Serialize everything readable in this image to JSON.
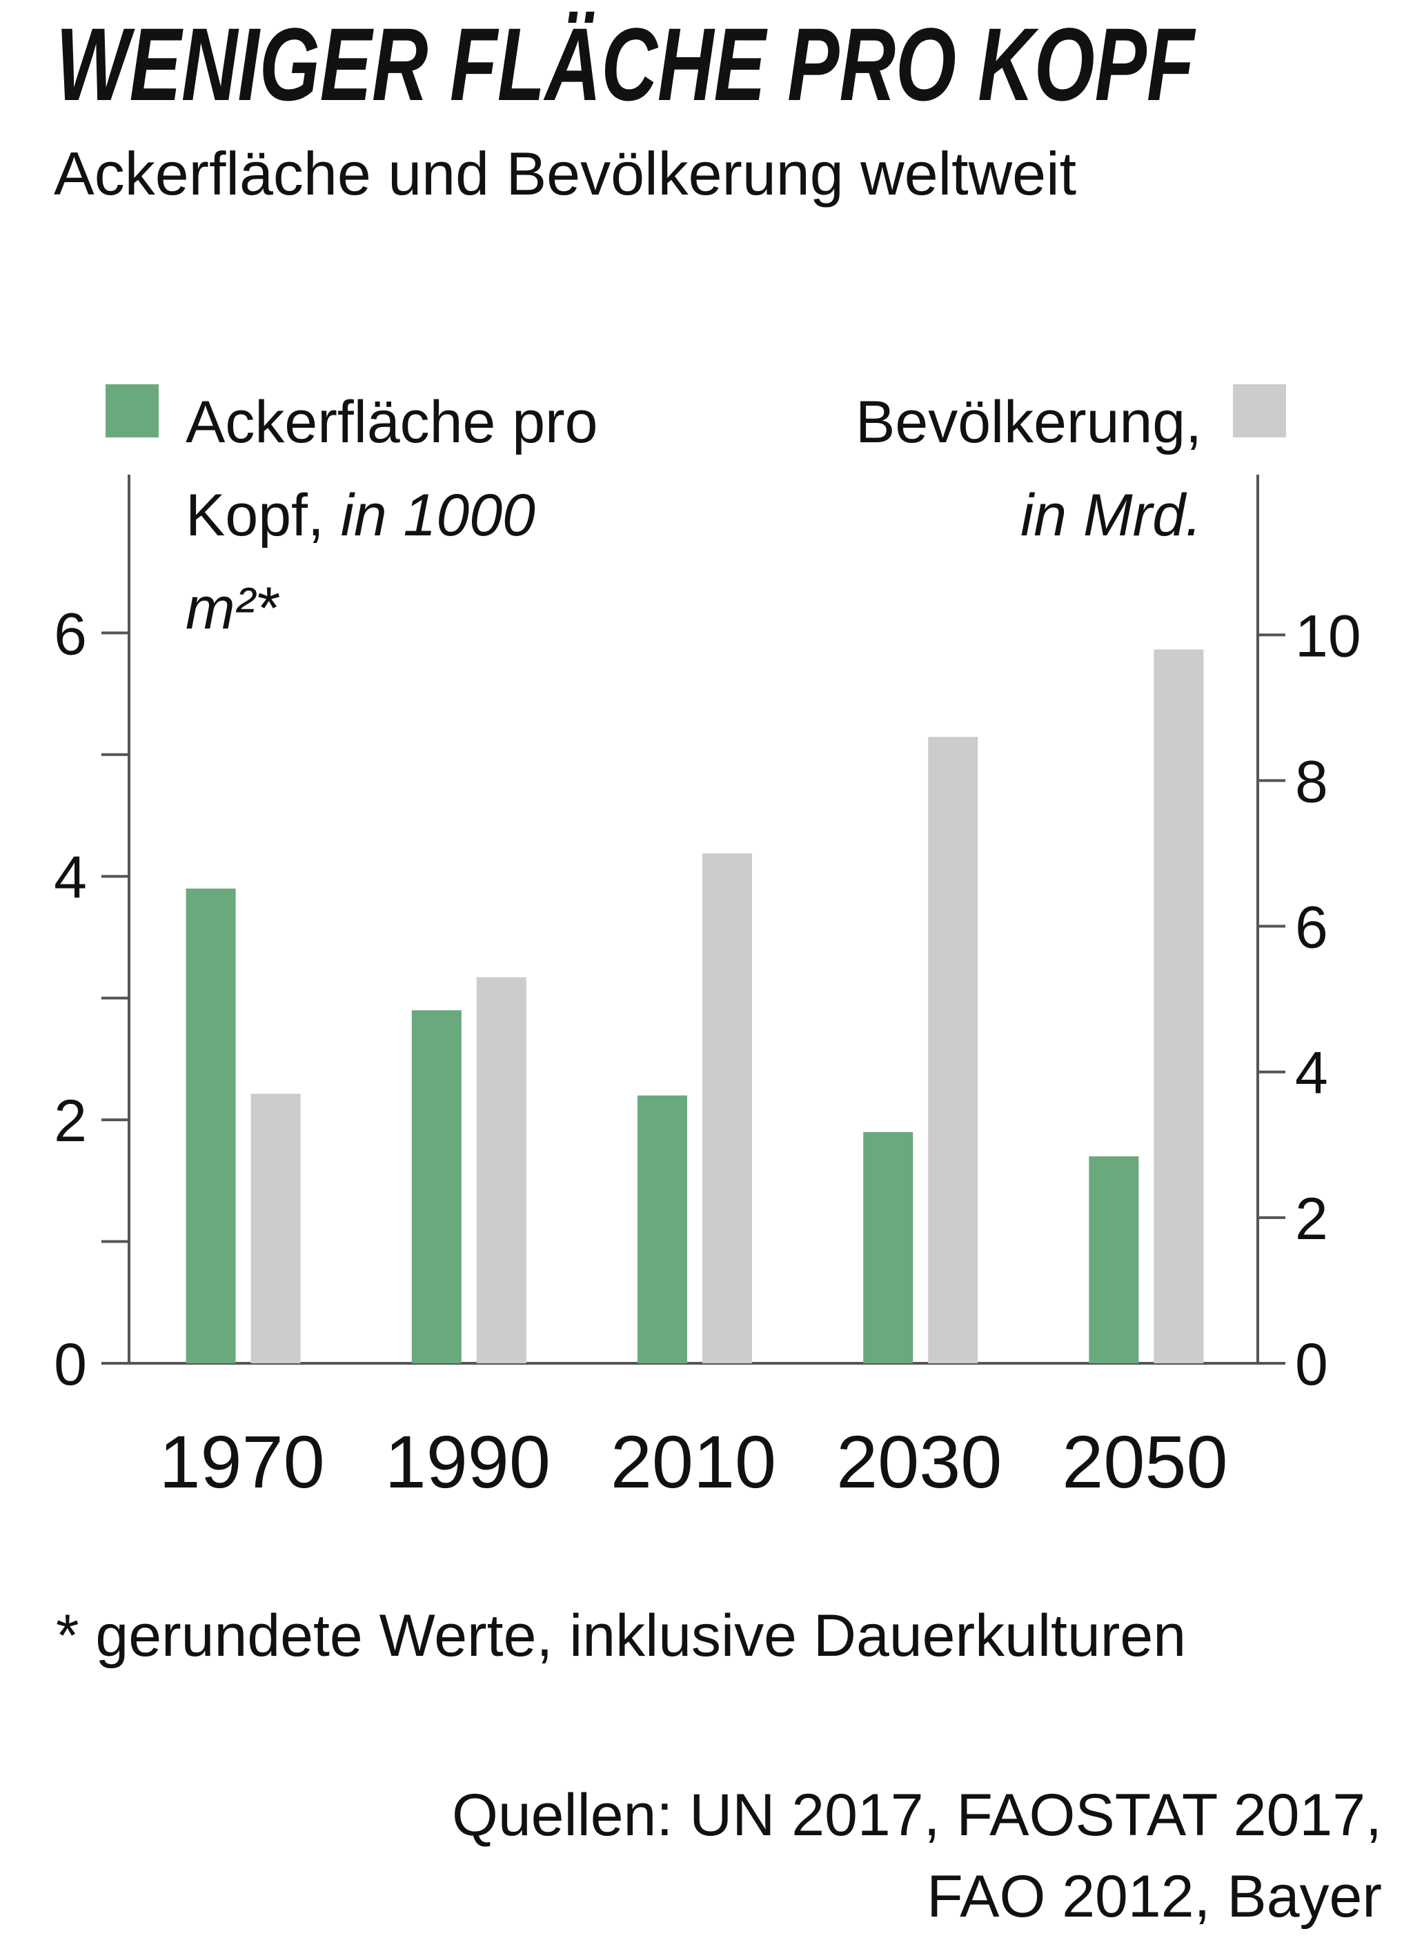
{
  "chart_data": {
    "type": "bar",
    "title": "WENIGER FLÄCHE PRO KOPF",
    "subtitle": "Ackerfläche und Bevölkerung weltweit",
    "categories": [
      "1970",
      "1990",
      "2010",
      "2030",
      "2050"
    ],
    "series": [
      {
        "name": "Ackerfläche pro Kopf,",
        "unit": "in 1000 m²*",
        "color": "#6aa87e",
        "values": [
          3.9,
          2.9,
          2.2,
          1.9,
          1.7
        ]
      },
      {
        "name": "Bevölkerung,",
        "unit": "in Mrd.",
        "color": "#cccccc",
        "axis": "y2",
        "values": [
          3.7,
          5.3,
          7.0,
          8.6,
          9.8
        ]
      }
    ],
    "ylim": [
      0,
      7.3
    ],
    "yticks": [
      0,
      2,
      4,
      6
    ],
    "yminor_ticks": [
      1,
      3,
      5
    ],
    "y2lim": [
      0,
      12.2
    ],
    "y2ticks": [
      0,
      2,
      4,
      6,
      8,
      10
    ],
    "footnote": "* gerundete Werte, inklusive Dauerkulturen",
    "source": [
      "Quellen: UN 2017, FAOSTAT 2017,",
      "FAO 2012, Bayer"
    ]
  }
}
